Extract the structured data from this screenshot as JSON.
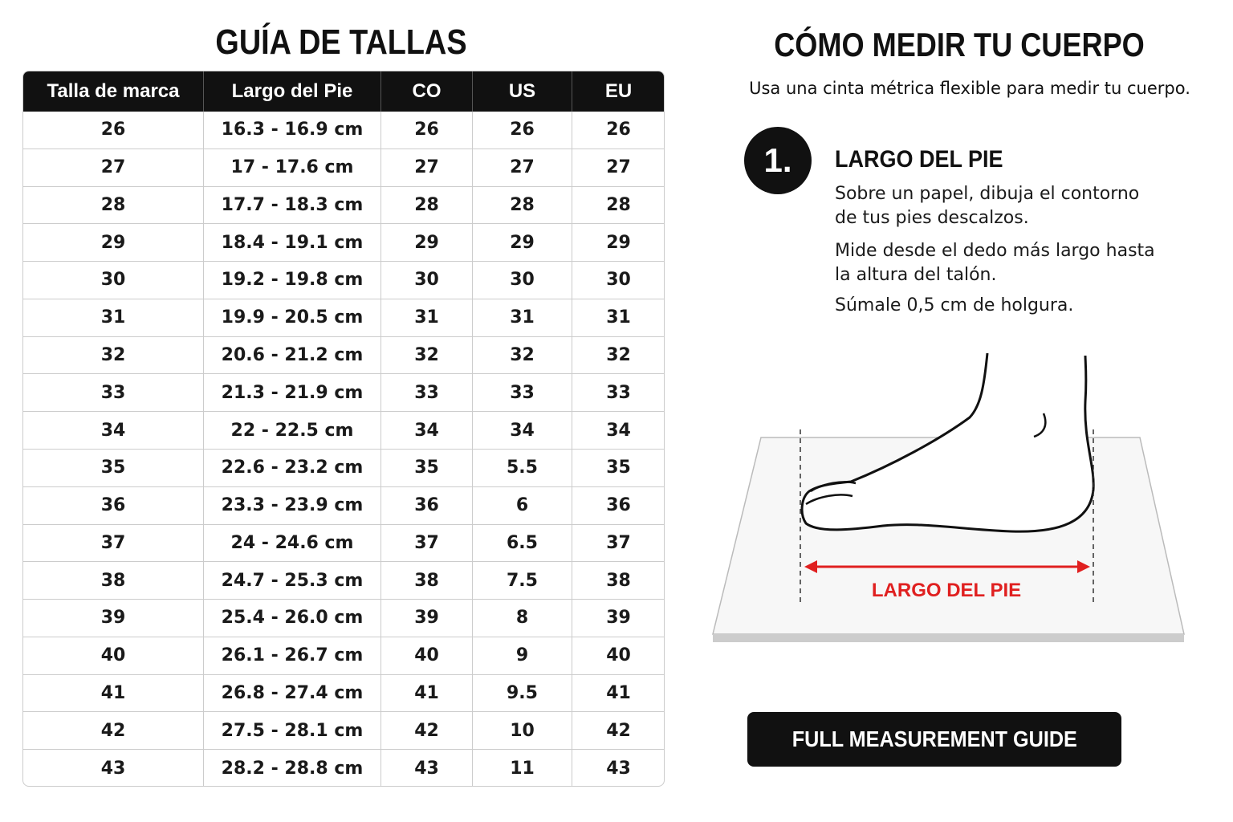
{
  "size_guide": {
    "title": "GUÍA DE TALLAS",
    "table": {
      "headers": [
        "Talla de marca",
        "Largo del Pie",
        "CO",
        "US",
        "EU"
      ],
      "rows": [
        [
          "26",
          "16.3 - 16.9 cm",
          "26",
          "26",
          "26"
        ],
        [
          "27",
          "17 - 17.6 cm",
          "27",
          "27",
          "27"
        ],
        [
          "28",
          "17.7 - 18.3 cm",
          "28",
          "28",
          "28"
        ],
        [
          "29",
          "18.4 - 19.1 cm",
          "29",
          "29",
          "29"
        ],
        [
          "30",
          "19.2 - 19.8 cm",
          "30",
          "30",
          "30"
        ],
        [
          "31",
          "19.9 - 20.5 cm",
          "31",
          "31",
          "31"
        ],
        [
          "32",
          "20.6 - 21.2 cm",
          "32",
          "32",
          "32"
        ],
        [
          "33",
          "21.3 - 21.9 cm",
          "33",
          "33",
          "33"
        ],
        [
          "34",
          "22 - 22.5 cm",
          "34",
          "34",
          "34"
        ],
        [
          "35",
          "22.6 - 23.2 cm",
          "35",
          "5.5",
          "35"
        ],
        [
          "36",
          "23.3 - 23.9 cm",
          "36",
          "6",
          "36"
        ],
        [
          "37",
          "24 - 24.6 cm",
          "37",
          "6.5",
          "37"
        ],
        [
          "38",
          "24.7 - 25.3 cm",
          "38",
          "7.5",
          "38"
        ],
        [
          "39",
          "25.4 - 26.0 cm",
          "39",
          "8",
          "39"
        ],
        [
          "40",
          "26.1 - 26.7 cm",
          "40",
          "9",
          "40"
        ],
        [
          "41",
          "26.8 - 27.4 cm",
          "41",
          "9.5",
          "41"
        ],
        [
          "42",
          "27.5 - 28.1 cm",
          "42",
          "10",
          "42"
        ],
        [
          "43",
          "28.2 - 28.8 cm",
          "43",
          "11",
          "43"
        ]
      ]
    }
  },
  "measure": {
    "title": "CÓMO MEDIR TU CUERPO",
    "subtitle": "Usa una cinta métrica flexible para medir tu cuerpo.",
    "step": {
      "number": "1.",
      "title": "LARGO DEL PIE",
      "paragraphs": [
        "Sobre un papel, dibuja el contorno de tus pies descalzos.",
        "Mide desde el dedo más largo hasta la altura del talón.",
        "Súmale 0,5 cm de holgura."
      ]
    },
    "diagram_label": "LARGO DEL PIE",
    "button": "FULL MEASUREMENT GUIDE"
  }
}
